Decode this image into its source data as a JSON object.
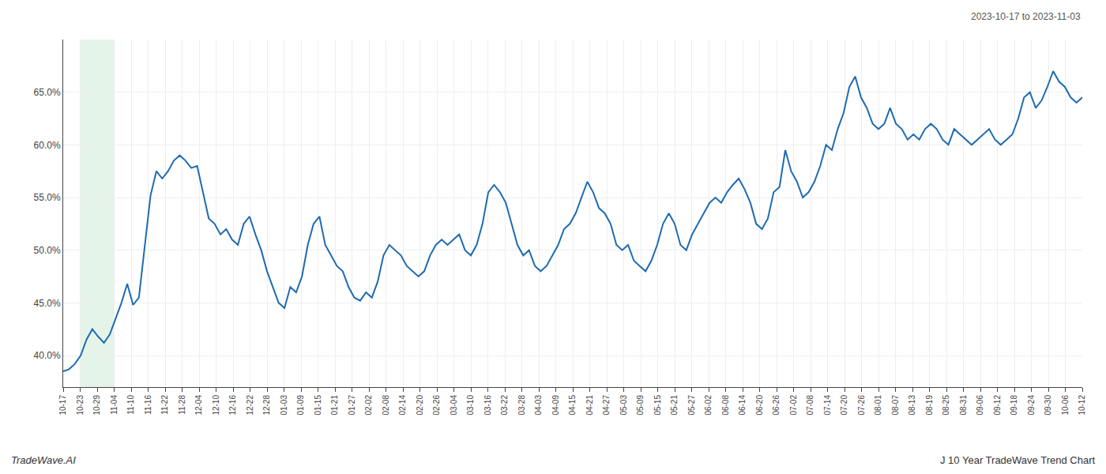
{
  "chart_data": {
    "type": "line",
    "color": "#1f6bb0",
    "annotations": [
      "2023-10-17 to 2023-11-03",
      "TradeWave.AI",
      "J 10 Year TradeWave Trend Chart"
    ],
    "highlight": {
      "x": [
        1,
        3
      ],
      "color": "#d4edda"
    },
    "grid": true,
    "xlim": [
      0,
      60
    ],
    "xticks": [
      {
        "value": 0,
        "label": "10-17"
      },
      {
        "value": 1,
        "label": "10-23"
      },
      {
        "value": 2,
        "label": "10-29"
      },
      {
        "value": 3,
        "label": "11-04"
      },
      {
        "value": 4,
        "label": "11-10"
      },
      {
        "value": 5,
        "label": "11-16"
      },
      {
        "value": 6,
        "label": "11-22"
      },
      {
        "value": 7,
        "label": "11-28"
      },
      {
        "value": 8,
        "label": "12-04"
      },
      {
        "value": 9,
        "label": "12-10"
      },
      {
        "value": 10,
        "label": "12-16"
      },
      {
        "value": 11,
        "label": "12-22"
      },
      {
        "value": 12,
        "label": "12-28"
      },
      {
        "value": 13,
        "label": "01-03"
      },
      {
        "value": 14,
        "label": "01-09"
      },
      {
        "value": 15,
        "label": "01-15"
      },
      {
        "value": 16,
        "label": "01-21"
      },
      {
        "value": 17,
        "label": "01-27"
      },
      {
        "value": 18,
        "label": "02-02"
      },
      {
        "value": 19,
        "label": "02-08"
      },
      {
        "value": 20,
        "label": "02-14"
      },
      {
        "value": 21,
        "label": "02-20"
      },
      {
        "value": 22,
        "label": "02-26"
      },
      {
        "value": 23,
        "label": "03-04"
      },
      {
        "value": 24,
        "label": "03-10"
      },
      {
        "value": 25,
        "label": "03-16"
      },
      {
        "value": 26,
        "label": "03-22"
      },
      {
        "value": 27,
        "label": "03-28"
      },
      {
        "value": 28,
        "label": "04-03"
      },
      {
        "value": 29,
        "label": "04-09"
      },
      {
        "value": 30,
        "label": "04-15"
      },
      {
        "value": 31,
        "label": "04-21"
      },
      {
        "value": 32,
        "label": "04-27"
      },
      {
        "value": 33,
        "label": "05-03"
      },
      {
        "value": 34,
        "label": "05-09"
      },
      {
        "value": 35,
        "label": "05-15"
      },
      {
        "value": 36,
        "label": "05-21"
      },
      {
        "value": 37,
        "label": "05-27"
      },
      {
        "value": 38,
        "label": "06-02"
      },
      {
        "value": 39,
        "label": "06-08"
      },
      {
        "value": 40,
        "label": "06-14"
      },
      {
        "value": 41,
        "label": "06-20"
      },
      {
        "value": 42,
        "label": "06-26"
      },
      {
        "value": 43,
        "label": "07-02"
      },
      {
        "value": 44,
        "label": "07-08"
      },
      {
        "value": 45,
        "label": "07-14"
      },
      {
        "value": 46,
        "label": "07-20"
      },
      {
        "value": 47,
        "label": "07-26"
      },
      {
        "value": 48,
        "label": "08-01"
      },
      {
        "value": 49,
        "label": "08-07"
      },
      {
        "value": 50,
        "label": "08-13"
      },
      {
        "value": 51,
        "label": "08-19"
      },
      {
        "value": 52,
        "label": "08-25"
      },
      {
        "value": 53,
        "label": "08-31"
      },
      {
        "value": 54,
        "label": "09-06"
      },
      {
        "value": 55,
        "label": "09-12"
      },
      {
        "value": 56,
        "label": "09-18"
      },
      {
        "value": 57,
        "label": "09-24"
      },
      {
        "value": 58,
        "label": "09-30"
      },
      {
        "value": 59,
        "label": "10-06"
      },
      {
        "value": 60,
        "label": "10-12"
      }
    ],
    "ylim": [
      37.0,
      70.0
    ],
    "yticks": [
      {
        "value": 40.0,
        "label": "40.0%"
      },
      {
        "value": 45.0,
        "label": "45.0%"
      },
      {
        "value": 50.0,
        "label": "50.0%"
      },
      {
        "value": 55.0,
        "label": "55.0%"
      },
      {
        "value": 60.0,
        "label": "60.0%"
      },
      {
        "value": 65.0,
        "label": "65.0%"
      }
    ],
    "x": [
      0,
      0.342857,
      0.685714,
      1.028571,
      1.371429,
      1.714286,
      2.057143,
      2.4,
      2.742857,
      3.085714,
      3.428571,
      3.771429,
      4.114286,
      4.457143,
      4.8,
      5.142857,
      5.485714,
      5.828571,
      6.171429,
      6.514286,
      6.857143,
      7.2,
      7.542857,
      7.885714,
      8.228571,
      8.571429,
      8.914286,
      9.257143,
      9.6,
      9.942857,
      10.285714,
      10.628571,
      10.971429,
      11.314286,
      11.657143,
      12,
      12.342857,
      12.685714,
      13.028571,
      13.371429,
      13.714286,
      14.057143,
      14.4,
      14.742857,
      15.085714,
      15.428571,
      15.771429,
      16.114286,
      16.457143,
      16.8,
      17.142857,
      17.485714,
      17.828571,
      18.171429,
      18.514286,
      18.857143,
      19.2,
      19.542857,
      19.885714,
      20.228571,
      20.571429,
      20.914286,
      21.257143,
      21.6,
      21.942857,
      22.285714,
      22.628571,
      22.971429,
      23.314286,
      23.657143,
      24,
      24.342857,
      24.685714,
      25.028571,
      25.371429,
      25.714286,
      26.057143,
      26.4,
      26.742857,
      27.085714,
      27.428571,
      27.771429,
      28.114286,
      28.457143,
      28.8,
      29.142857,
      29.485714,
      29.828571,
      30.171429,
      30.514286,
      30.857143,
      31.2,
      31.542857,
      31.885714,
      32.228571,
      32.571429,
      32.914286,
      33.257143,
      33.6,
      33.942857,
      34.285714,
      34.628571,
      34.971429,
      35.314286,
      35.657143,
      36,
      36.342857,
      36.685714,
      37.028571,
      37.371429,
      37.714286,
      38.057143,
      38.4,
      38.742857,
      39.085714,
      39.428571,
      39.771429,
      40.114286,
      40.457143,
      40.8,
      41.142857,
      41.485714,
      41.828571,
      42.171429,
      42.514286,
      42.857143,
      43.2,
      43.542857,
      43.885714,
      44.228571,
      44.571429,
      44.914286,
      45.257143,
      45.6,
      45.942857,
      46.285714,
      46.628571,
      46.971429,
      47.314286,
      47.657143,
      48,
      48.342857,
      48.685714,
      49.028571,
      49.371429,
      49.714286,
      50.057143,
      50.4,
      50.742857,
      51.085714,
      51.428571,
      51.771429,
      52.114286,
      52.457143,
      52.8,
      53.142857,
      53.485714,
      53.828571,
      54.171429,
      54.514286,
      54.857143,
      55.2,
      55.542857,
      55.885714,
      56.228571,
      56.571429,
      56.914286,
      57.257143,
      57.6,
      57.942857,
      58.285714,
      58.628571,
      58.971429,
      59.314286,
      59.657143,
      60
    ],
    "values": [
      38.5,
      38.7,
      39.2,
      40.0,
      41.5,
      42.5,
      41.8,
      41.2,
      42.0,
      43.5,
      45.0,
      46.8,
      44.8,
      45.5,
      50.2,
      55.2,
      57.5,
      56.8,
      57.5,
      58.5,
      59.0,
      58.5,
      57.8,
      58.0,
      55.5,
      53.0,
      52.5,
      51.5,
      52.0,
      51.0,
      50.5,
      52.5,
      53.2,
      51.5,
      50.0,
      48.0,
      46.5,
      45.0,
      44.5,
      46.5,
      46.0,
      47.5,
      50.5,
      52.5,
      53.2,
      50.5,
      49.5,
      48.5,
      48.0,
      46.5,
      45.5,
      45.2,
      46.0,
      45.5,
      47.0,
      49.5,
      50.5,
      50.0,
      49.5,
      48.5,
      48.0,
      47.5,
      48.0,
      49.5,
      50.5,
      51.0,
      50.5,
      51.0,
      51.5,
      50.0,
      49.5,
      50.5,
      52.5,
      55.5,
      56.2,
      55.5,
      54.5,
      52.5,
      50.5,
      49.5,
      50.0,
      48.5,
      48.0,
      48.5,
      49.5,
      50.5,
      52.0,
      52.5,
      53.5,
      55.0,
      56.5,
      55.5,
      54.0,
      53.5,
      52.5,
      50.5,
      50.0,
      50.5,
      49.0,
      48.5,
      48.0,
      49.0,
      50.5,
      52.5,
      53.5,
      52.5,
      50.5,
      50.0,
      51.5,
      52.5,
      53.5,
      54.5,
      55.0,
      54.5,
      55.5,
      56.2,
      56.8,
      55.8,
      54.5,
      52.5,
      52.0,
      53.0,
      55.5,
      56.0,
      59.5,
      57.5,
      56.5,
      55.0,
      55.5,
      56.5,
      58.0,
      60.0,
      59.5,
      61.5,
      63.0,
      65.5,
      66.5,
      64.5,
      63.5,
      62.0,
      61.5,
      62.0,
      63.5,
      62.0,
      61.5,
      60.5,
      61.0,
      60.5,
      61.5,
      62.0,
      61.5,
      60.5,
      60.0,
      61.5,
      61.0,
      60.5,
      60.0,
      60.5,
      61.0,
      61.5,
      60.5,
      60.0,
      60.5,
      61.0,
      62.5,
      64.5,
      65.0,
      63.5,
      64.2,
      65.5,
      67.0,
      66.0,
      65.5,
      64.5,
      64.0,
      64.5
    ]
  }
}
